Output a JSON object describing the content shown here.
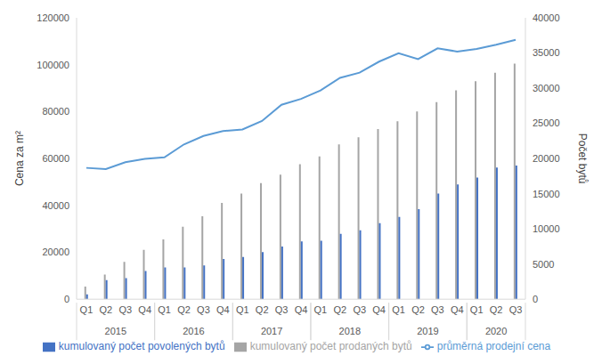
{
  "chart_data": {
    "type": "bar",
    "categories": [
      "Q1",
      "Q2",
      "Q3",
      "Q4",
      "Q1",
      "Q2",
      "Q3",
      "Q4",
      "Q1",
      "Q2",
      "Q3",
      "Q4",
      "Q1",
      "Q2",
      "Q3",
      "Q4",
      "Q1",
      "Q2",
      "Q3",
      "Q4",
      "Q1",
      "Q2",
      "Q3"
    ],
    "groups": [
      {
        "label": "2015",
        "size": 4
      },
      {
        "label": "2016",
        "size": 4
      },
      {
        "label": "2017",
        "size": 4
      },
      {
        "label": "2018",
        "size": 4
      },
      {
        "label": "2019",
        "size": 4
      },
      {
        "label": "2020",
        "size": 3
      }
    ],
    "y_label": "Cena za m²",
    "y2_label": "Počet bytů",
    "ylim": [
      0,
      120000
    ],
    "yticks": [
      0,
      20000,
      40000,
      60000,
      80000,
      100000,
      120000
    ],
    "y2lim": [
      0,
      40000
    ],
    "y2ticks": [
      0,
      5000,
      10000,
      15000,
      20000,
      25000,
      30000,
      35000,
      40000
    ],
    "grid": false,
    "legend": "bottom",
    "series": [
      {
        "name": "kumulovaný počet prodaných bytů",
        "type": "bar",
        "axis": "y2",
        "color": "#a5a5a5",
        "values": [
          1800,
          3500,
          5300,
          7000,
          8500,
          10300,
          11800,
          13700,
          15000,
          16500,
          17700,
          19200,
          20300,
          22000,
          23000,
          24200,
          25300,
          26700,
          28000,
          29700,
          31000,
          32200,
          33500
        ]
      },
      {
        "name": "kumulovaný počet povolených bytů",
        "type": "bar",
        "axis": "y2",
        "color": "#4472c4",
        "values": [
          700,
          2700,
          3000,
          4000,
          4500,
          4500,
          4800,
          5700,
          6000,
          6700,
          7500,
          8200,
          8300,
          9300,
          9800,
          10800,
          11700,
          12800,
          15000,
          16300,
          17300,
          18700,
          19000
        ]
      },
      {
        "name": "průměrná prodejní cena",
        "type": "line",
        "color": "#5b9bd5",
        "values": [
          56000,
          55500,
          58400,
          59800,
          60500,
          66000,
          69600,
          71700,
          72400,
          76000,
          82900,
          85400,
          89000,
          94400,
          96600,
          101300,
          104900,
          102400,
          107000,
          105600,
          106700,
          108500,
          110600
        ]
      }
    ]
  }
}
